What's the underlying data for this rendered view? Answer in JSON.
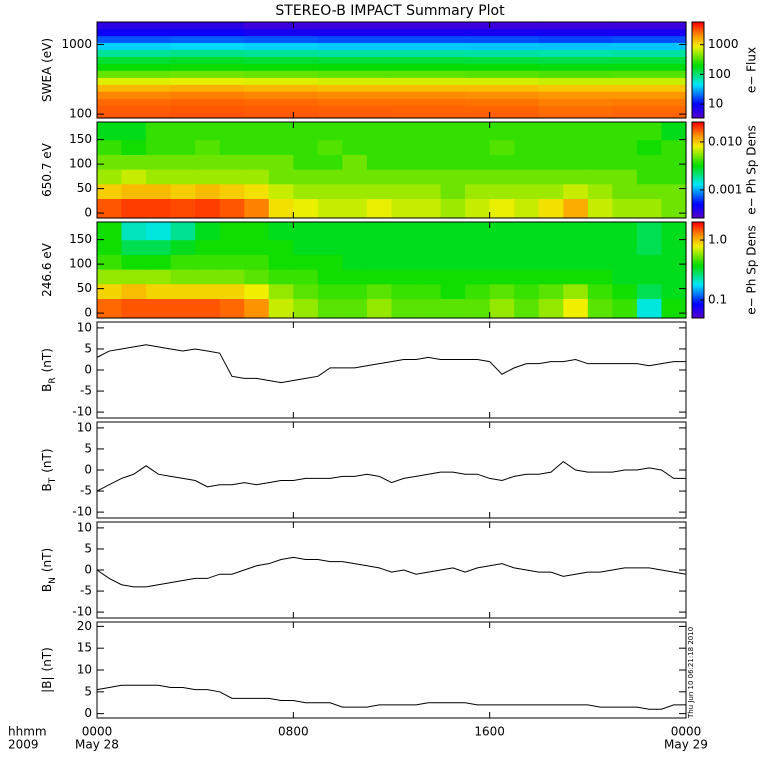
{
  "chart_data": [
    {
      "type": "heatmap",
      "title": "STEREO-B IMPACT Summary Plot",
      "ylabel": "SWEA (eV)",
      "ylog": true,
      "ylim": [
        88,
        2100
      ],
      "yticks": [
        100,
        1000
      ],
      "xlim": [
        0,
        24
      ],
      "x": [
        1.5,
        4.5,
        7.5,
        10.5,
        13.5,
        16.5,
        19.5,
        22.5
      ],
      "y": [
        95,
        120,
        150,
        190,
        240,
        300,
        380,
        480,
        600,
        760,
        960,
        1200,
        1500,
        1900
      ],
      "z": [
        [
          3200,
          3300,
          3200,
          3100,
          3000,
          3000,
          2800,
          2900
        ],
        [
          3100,
          3200,
          3100,
          3000,
          2900,
          2900,
          2700,
          2800
        ],
        [
          2800,
          2900,
          2800,
          2700,
          2700,
          2600,
          2400,
          2500
        ],
        [
          2300,
          2400,
          2300,
          2200,
          2200,
          2100,
          2000,
          2000
        ],
        [
          1500,
          1600,
          1500,
          1400,
          1400,
          1400,
          1300,
          1300
        ],
        [
          800,
          850,
          800,
          750,
          750,
          750,
          700,
          700
        ],
        [
          380,
          400,
          380,
          360,
          360,
          350,
          330,
          340
        ],
        [
          210,
          220,
          210,
          200,
          200,
          200,
          190,
          190
        ],
        [
          150,
          160,
          150,
          145,
          145,
          140,
          135,
          140
        ],
        [
          85,
          90,
          85,
          80,
          80,
          78,
          75,
          78
        ],
        [
          40,
          42,
          40,
          38,
          38,
          37,
          36,
          37
        ],
        [
          18,
          19,
          18,
          17,
          17,
          17,
          16,
          17
        ],
        [
          9,
          9,
          8,
          8,
          8,
          8,
          8,
          8
        ],
        [
          6,
          6,
          5,
          5,
          5,
          5,
          5,
          5
        ]
      ],
      "clog": true,
      "clim": [
        3.4,
        5800
      ],
      "cticks": [
        10,
        100,
        1000
      ],
      "colorbar_label": "e− Flux"
    },
    {
      "type": "heatmap",
      "ylabel": "650.7 eV",
      "ylim": [
        -10,
        186
      ],
      "yticks": [
        0,
        50,
        100,
        150
      ],
      "xlim": [
        0,
        24
      ],
      "x": [
        0.5,
        1.5,
        2.5,
        3.5,
        4.5,
        5.5,
        6.5,
        7.5,
        8.5,
        9.5,
        10.5,
        11.5,
        12.5,
        13.5,
        14.5,
        15.5,
        16.5,
        17.5,
        18.5,
        19.5,
        20.5,
        21.5,
        22.5,
        23.5
      ],
      "y": [
        15,
        45,
        75,
        105,
        135,
        165
      ],
      "z": [
        [
          0.018,
          0.02,
          0.02,
          0.019,
          0.02,
          0.018,
          0.015,
          0.009,
          0.008,
          0.007,
          0.007,
          0.008,
          0.007,
          0.007,
          0.006,
          0.007,
          0.008,
          0.007,
          0.009,
          0.012,
          0.007,
          0.006,
          0.006,
          0.005
        ],
        [
          0.01,
          0.011,
          0.011,
          0.01,
          0.011,
          0.01,
          0.009,
          0.007,
          0.006,
          0.006,
          0.006,
          0.006,
          0.006,
          0.006,
          0.005,
          0.006,
          0.006,
          0.006,
          0.006,
          0.007,
          0.006,
          0.005,
          0.005,
          0.005
        ],
        [
          0.006,
          0.007,
          0.006,
          0.006,
          0.006,
          0.006,
          0.006,
          0.005,
          0.005,
          0.005,
          0.005,
          0.005,
          0.005,
          0.005,
          0.005,
          0.005,
          0.005,
          0.005,
          0.005,
          0.005,
          0.005,
          0.005,
          0.004,
          0.004
        ],
        [
          0.005,
          0.005,
          0.005,
          0.005,
          0.005,
          0.005,
          0.005,
          0.005,
          0.004,
          0.004,
          0.005,
          0.004,
          0.004,
          0.004,
          0.004,
          0.004,
          0.004,
          0.004,
          0.004,
          0.004,
          0.004,
          0.004,
          0.004,
          0.004
        ],
        [
          0.004,
          0.0035,
          0.004,
          0.004,
          0.0045,
          0.004,
          0.004,
          0.004,
          0.004,
          0.0045,
          0.004,
          0.004,
          0.004,
          0.004,
          0.004,
          0.004,
          0.0045,
          0.004,
          0.004,
          0.004,
          0.004,
          0.004,
          0.0035,
          0.004
        ],
        [
          0.003,
          0.003,
          0.004,
          0.004,
          0.004,
          0.004,
          0.004,
          0.004,
          0.004,
          0.004,
          0.004,
          0.004,
          0.004,
          0.004,
          0.004,
          0.004,
          0.004,
          0.004,
          0.004,
          0.004,
          0.004,
          0.004,
          0.004,
          0.003
        ]
      ],
      "clog": true,
      "clim": [
        0.00026,
        0.026
      ],
      "cticks": [
        0.001,
        {
          "value": 0.01,
          "label": "0.010"
        }
      ],
      "colorbar_label": "e− Ph Sp Dens"
    },
    {
      "type": "heatmap",
      "ylabel": "246.6 eV",
      "ylim": [
        -10,
        186
      ],
      "yticks": [
        0,
        50,
        100,
        150
      ],
      "xlim": [
        0,
        24
      ],
      "x": [
        0.5,
        1.5,
        2.5,
        3.5,
        4.5,
        5.5,
        6.5,
        7.5,
        8.5,
        9.5,
        10.5,
        11.5,
        12.5,
        13.5,
        14.5,
        15.5,
        16.5,
        17.5,
        18.5,
        19.5,
        20.5,
        21.5,
        22.5,
        23.5
      ],
      "y": [
        15,
        45,
        75,
        105,
        135,
        165
      ],
      "z": [
        [
          1.4,
          1.5,
          1.5,
          1.5,
          1.5,
          1.4,
          1.2,
          0.7,
          0.6,
          0.5,
          0.5,
          0.6,
          0.5,
          0.5,
          0.5,
          0.5,
          0.6,
          0.5,
          0.6,
          0.8,
          0.5,
          0.45,
          0.2,
          0.4
        ],
        [
          0.9,
          1.0,
          0.9,
          0.9,
          0.9,
          0.9,
          0.8,
          0.6,
          0.5,
          0.45,
          0.45,
          0.5,
          0.45,
          0.45,
          0.4,
          0.45,
          0.5,
          0.45,
          0.5,
          0.6,
          0.45,
          0.4,
          0.3,
          0.35
        ],
        [
          0.6,
          0.6,
          0.6,
          0.55,
          0.55,
          0.55,
          0.5,
          0.45,
          0.45,
          0.4,
          0.4,
          0.4,
          0.4,
          0.4,
          0.4,
          0.4,
          0.4,
          0.4,
          0.4,
          0.4,
          0.4,
          0.35,
          0.35,
          0.35
        ],
        [
          0.45,
          0.4,
          0.4,
          0.45,
          0.45,
          0.45,
          0.45,
          0.4,
          0.4,
          0.4,
          0.35,
          0.35,
          0.35,
          0.35,
          0.35,
          0.35,
          0.35,
          0.35,
          0.35,
          0.35,
          0.35,
          0.35,
          0.35,
          0.35
        ],
        [
          0.4,
          0.3,
          0.3,
          0.35,
          0.4,
          0.4,
          0.4,
          0.4,
          0.35,
          0.35,
          0.35,
          0.35,
          0.35,
          0.35,
          0.35,
          0.35,
          0.35,
          0.35,
          0.35,
          0.35,
          0.35,
          0.35,
          0.3,
          0.35
        ],
        [
          0.4,
          0.22,
          0.2,
          0.25,
          0.35,
          0.4,
          0.4,
          0.35,
          0.35,
          0.35,
          0.35,
          0.35,
          0.35,
          0.35,
          0.35,
          0.35,
          0.35,
          0.35,
          0.35,
          0.35,
          0.35,
          0.35,
          0.3,
          0.35
        ]
      ],
      "clog": true,
      "clim": [
        0.05,
        2.0
      ],
      "cticks": [
        0.1,
        {
          "value": 1,
          "label": "1.0"
        }
      ],
      "colorbar_label": "e− Ph Sp Dens"
    },
    {
      "type": "line",
      "ylabel": "B",
      "ylabel_sub": "R",
      "ylabel_unit": "(nT)",
      "color": "#000000",
      "ylim": [
        -11.4,
        11.4
      ],
      "yticks": [
        -10,
        -5,
        0,
        5,
        10
      ],
      "xlim": [
        0,
        24
      ],
      "x": [
        0,
        0.5,
        1,
        1.5,
        2,
        2.5,
        3,
        3.5,
        4,
        4.5,
        5,
        5.5,
        6,
        6.5,
        7,
        7.5,
        8,
        8.5,
        9,
        9.5,
        10,
        10.5,
        11,
        11.5,
        12,
        12.5,
        13,
        13.5,
        14,
        14.5,
        15,
        15.5,
        16,
        16.5,
        17,
        17.5,
        18,
        18.5,
        19,
        19.5,
        20,
        20.5,
        21,
        21.5,
        22,
        22.5,
        23,
        23.5,
        24
      ],
      "values": [
        3,
        4.5,
        5,
        5.5,
        6,
        5.5,
        5,
        4.5,
        5,
        4.5,
        4,
        -1.5,
        -2,
        -2,
        -2.5,
        -3,
        -2.5,
        -2,
        -1.5,
        0.5,
        0.5,
        0.5,
        1,
        1.5,
        2,
        2.5,
        2.5,
        3,
        2.5,
        2.5,
        2.5,
        2.5,
        2,
        -1,
        0.5,
        1.5,
        1.5,
        2,
        2,
        2.5,
        1.5,
        1.5,
        1.5,
        1.5,
        1.5,
        1,
        1.5,
        2,
        2
      ]
    },
    {
      "type": "line",
      "ylabel": "B",
      "ylabel_sub": "T",
      "ylabel_unit": "(nT)",
      "color": "#000000",
      "ylim": [
        -11.4,
        11.4
      ],
      "yticks": [
        -10,
        -5,
        0,
        5,
        10
      ],
      "xlim": [
        0,
        24
      ],
      "x": [
        0,
        0.5,
        1,
        1.5,
        2,
        2.5,
        3,
        3.5,
        4,
        4.5,
        5,
        5.5,
        6,
        6.5,
        7,
        7.5,
        8,
        8.5,
        9,
        9.5,
        10,
        10.5,
        11,
        11.5,
        12,
        12.5,
        13,
        13.5,
        14,
        14.5,
        15,
        15.5,
        16,
        16.5,
        17,
        17.5,
        18,
        18.5,
        19,
        19.5,
        20,
        20.5,
        21,
        21.5,
        22,
        22.5,
        23,
        23.5,
        24
      ],
      "values": [
        -5,
        -3.5,
        -2,
        -1,
        1,
        -1,
        -1.5,
        -2,
        -2.5,
        -4,
        -3.5,
        -3.5,
        -3,
        -3.5,
        -3,
        -2.5,
        -2.5,
        -2,
        -2,
        -2,
        -1.5,
        -1.5,
        -1,
        -1.5,
        -3,
        -2,
        -1.5,
        -1,
        -0.5,
        -0.5,
        -1,
        -1,
        -2,
        -2.5,
        -1.5,
        -1,
        -1,
        -0.5,
        2,
        0,
        -0.5,
        -0.5,
        -0.5,
        0,
        0,
        0.5,
        0,
        -2,
        -2
      ]
    },
    {
      "type": "line",
      "ylabel": "B",
      "ylabel_sub": "N",
      "ylabel_unit": "(nT)",
      "color": "#000000",
      "ylim": [
        -11.4,
        11.4
      ],
      "yticks": [
        -10,
        -5,
        0,
        5,
        10
      ],
      "xlim": [
        0,
        24
      ],
      "x": [
        0,
        0.5,
        1,
        1.5,
        2,
        2.5,
        3,
        3.5,
        4,
        4.5,
        5,
        5.5,
        6,
        6.5,
        7,
        7.5,
        8,
        8.5,
        9,
        9.5,
        10,
        10.5,
        11,
        11.5,
        12,
        12.5,
        13,
        13.5,
        14,
        14.5,
        15,
        15.5,
        16,
        16.5,
        17,
        17.5,
        18,
        18.5,
        19,
        19.5,
        20,
        20.5,
        21,
        21.5,
        22,
        22.5,
        23,
        23.5,
        24
      ],
      "values": [
        0,
        -2,
        -3.5,
        -4,
        -4,
        -3.5,
        -3,
        -2.5,
        -2,
        -2,
        -1,
        -1,
        0,
        1,
        1.5,
        2.5,
        3,
        2.5,
        2.5,
        2,
        2,
        1.5,
        1,
        0.5,
        -0.5,
        0,
        -1,
        -0.5,
        0,
        0.5,
        -0.5,
        0.5,
        1,
        1.5,
        0.5,
        0,
        -0.5,
        -0.5,
        -1.5,
        -1,
        -0.5,
        -0.5,
        0,
        0.5,
        0.5,
        0.5,
        0,
        -0.5,
        -1
      ]
    },
    {
      "type": "line",
      "ylabel": "|B|",
      "ylabel_unit": "(nT)",
      "color": "#000000",
      "ylim": [
        -1,
        21
      ],
      "yticks": [
        0,
        5,
        10,
        15,
        20
      ],
      "xlim": [
        0,
        24
      ],
      "x": [
        0,
        0.5,
        1,
        1.5,
        2,
        2.5,
        3,
        3.5,
        4,
        4.5,
        5,
        5.5,
        6,
        6.5,
        7,
        7.5,
        8,
        8.5,
        9,
        9.5,
        10,
        10.5,
        11,
        11.5,
        12,
        12.5,
        13,
        13.5,
        14,
        14.5,
        15,
        15.5,
        16,
        16.5,
        17,
        17.5,
        18,
        18.5,
        19,
        19.5,
        20,
        20.5,
        21,
        21.5,
        22,
        22.5,
        23,
        23.5,
        24
      ],
      "values": [
        5.5,
        6,
        6.5,
        6.5,
        6.5,
        6.5,
        6,
        6,
        5.5,
        5.5,
        5,
        3.5,
        3.5,
        3.5,
        3.5,
        3,
        3,
        2.5,
        2.5,
        2.5,
        1.5,
        1.5,
        1.5,
        2,
        2,
        2,
        2,
        2.5,
        2.5,
        2.5,
        2.5,
        2,
        2,
        2,
        2,
        2,
        2,
        2,
        2,
        2,
        2,
        1.5,
        1.5,
        1.5,
        1.5,
        1,
        1,
        2,
        2
      ],
      "xticks": [
        {
          "value": 0,
          "label": "0000"
        },
        {
          "value": 8,
          "label": "0800"
        },
        {
          "value": 16,
          "label": "1600"
        },
        {
          "value": 24,
          "label": "0000"
        }
      ],
      "date_labels": [
        {
          "value": 0,
          "label": "May 28"
        },
        {
          "value": 24,
          "label": "May 29"
        }
      ],
      "xlabel": "hhmm",
      "year_label": "2009",
      "timestamp": "Thu Jun 10 06:21:18 2010"
    }
  ]
}
